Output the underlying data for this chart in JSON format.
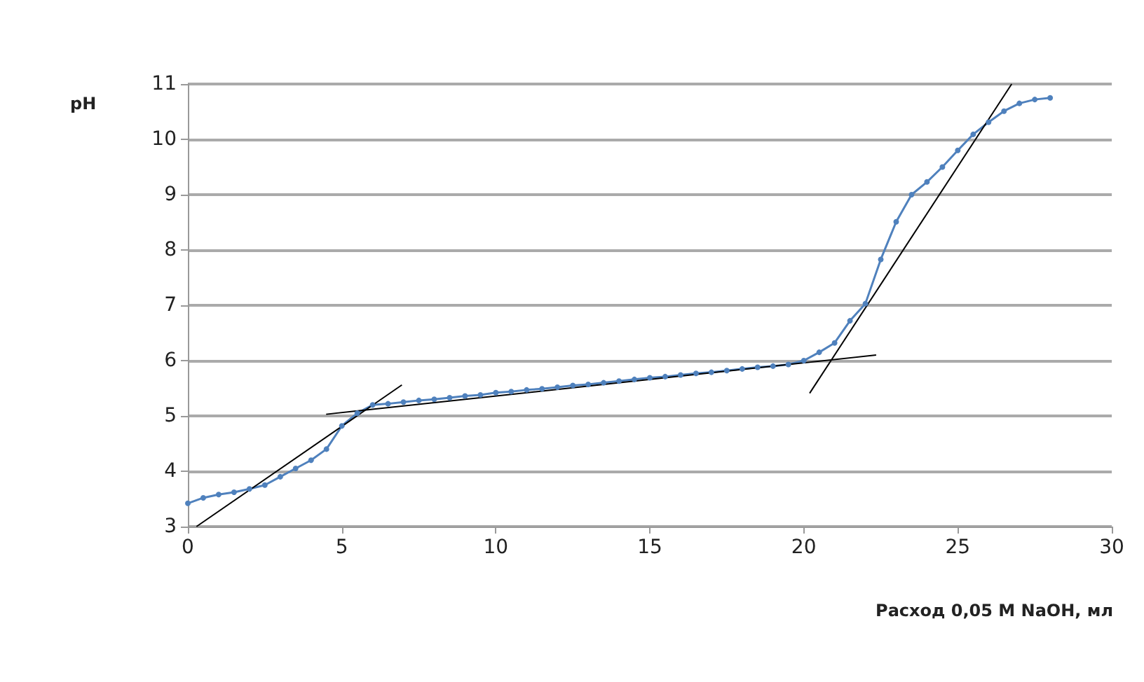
{
  "chart_data": {
    "type": "line",
    "xlabel": "Расход 0,05 M NaOH, мл",
    "ylabel": "pH",
    "xlim": [
      0,
      30
    ],
    "xticks": [
      0,
      5,
      10,
      15,
      20,
      25,
      30
    ],
    "ylim": [
      3,
      11
    ],
    "yticks": [
      3,
      4,
      5,
      6,
      7,
      8,
      9,
      10,
      11
    ],
    "grid": "y",
    "marker": "circle",
    "line_style": "solid",
    "series": [
      {
        "color": "#4f81bd",
        "x": [
          0,
          0.5,
          1,
          1.5,
          2,
          2.5,
          3,
          3.5,
          4,
          4.5,
          5,
          5.5,
          6,
          6.5,
          7,
          7.5,
          8,
          8.5,
          9,
          9.5,
          10,
          10.5,
          11,
          11.5,
          12,
          12.5,
          13,
          13.5,
          14,
          14.5,
          15,
          15.5,
          16,
          16.5,
          17,
          17.5,
          18,
          18.5,
          19,
          19.5,
          20,
          20.5,
          21,
          21.5,
          22,
          22.5,
          23,
          23.5,
          24,
          24.5,
          25,
          25.5,
          26,
          26.5,
          27,
          27.5,
          28
        ],
        "values": [
          3.42,
          3.52,
          3.58,
          3.62,
          3.68,
          3.75,
          3.9,
          4.05,
          4.2,
          4.4,
          4.82,
          5.05,
          5.2,
          5.22,
          5.25,
          5.28,
          5.3,
          5.33,
          5.36,
          5.38,
          5.42,
          5.44,
          5.47,
          5.49,
          5.52,
          5.55,
          5.57,
          5.6,
          5.63,
          5.66,
          5.69,
          5.71,
          5.74,
          5.77,
          5.79,
          5.82,
          5.85,
          5.88,
          5.9,
          5.93,
          6.0,
          6.15,
          6.32,
          6.72,
          7.03,
          7.83,
          8.51,
          9.0,
          9.23,
          9.5,
          9.8,
          10.09,
          10.31,
          10.51,
          10.65,
          10.72,
          10.75
        ]
      },
      {
        "color": "#000000",
        "marker": "none",
        "x": [
          0.28,
          6.95
        ],
        "values": [
          3,
          5.56
        ]
      },
      {
        "color": "#000000",
        "marker": "none",
        "x": [
          4.49,
          22.35
        ],
        "values": [
          5.03,
          6.1
        ]
      },
      {
        "color": "#000000",
        "marker": "none",
        "x": [
          20.19,
          26.75
        ],
        "values": [
          5.41,
          11
        ]
      }
    ]
  }
}
